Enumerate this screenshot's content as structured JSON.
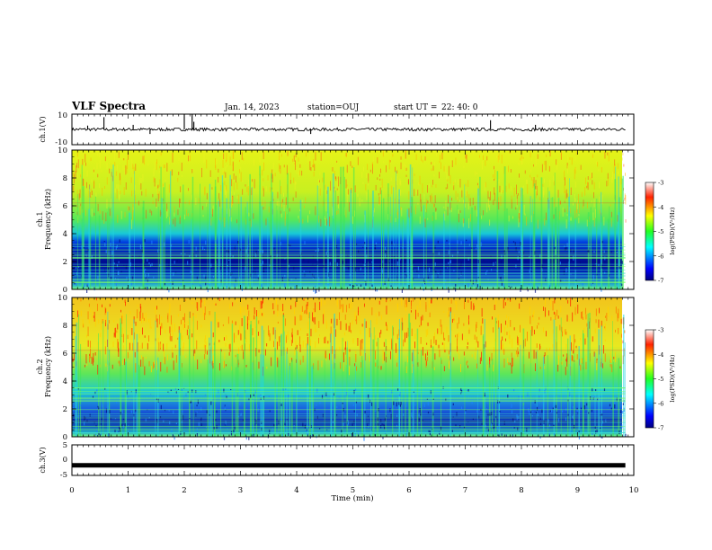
{
  "header": {
    "title": "VLF Spectra",
    "date": "Jan. 14, 2023",
    "station": "station=OUJ",
    "start_ut_label": "start UT =",
    "start_ut_value": "22: 40: 0"
  },
  "chart_data": [
    {
      "type": "line",
      "panel": "ch1-waveform",
      "ylabel": "ch.1(V)",
      "ylim": [
        -10,
        10
      ],
      "ytick_labels": [
        "10",
        "-10"
      ],
      "x_range": [
        0,
        9.85
      ],
      "baseline": 0,
      "noise_amplitude": 1,
      "spikes": [
        {
          "x": 0.28,
          "y": 2.5
        },
        {
          "x": 0.57,
          "y": 8
        },
        {
          "x": 1.09,
          "y": 3
        },
        {
          "x": 1.39,
          "y": -3
        },
        {
          "x": 2.0,
          "y": 10
        },
        {
          "x": 2.14,
          "y": 10
        },
        {
          "x": 2.17,
          "y": 5
        },
        {
          "x": 4.25,
          "y": -3
        },
        {
          "x": 7.45,
          "y": 6
        },
        {
          "x": 8.25,
          "y": 3
        }
      ]
    },
    {
      "type": "heatmap",
      "panel": "ch1-spectrogram",
      "ylabel": "ch.1\nFrequency (kHz)",
      "ylabel_line1": "ch.1",
      "ylabel_line2": "Frequency (kHz)",
      "ylim": [
        0,
        10
      ],
      "ytick_labels": [
        "0",
        "2",
        "4",
        "6",
        "8",
        "10"
      ],
      "x_range": [
        0,
        9.85
      ],
      "low_band_khz": [
        0,
        3.6
      ],
      "colorbar": {
        "label": "log(PSD)(V²/Hz)",
        "range": [
          -7,
          -3
        ],
        "tick_labels": [
          "-3",
          "-4",
          "-5",
          "-6",
          "-7"
        ]
      }
    },
    {
      "type": "heatmap",
      "panel": "ch2-spectrogram",
      "ylabel": "ch.2\nFrequency (kHz)",
      "ylabel_line1": "ch.2",
      "ylabel_line2": "Frequency (kHz)",
      "ylim": [
        0,
        10
      ],
      "ytick_labels": [
        "0",
        "2",
        "4",
        "6",
        "8",
        "10"
      ],
      "x_range": [
        0,
        9.85
      ],
      "low_band_khz": [
        0,
        3.6
      ],
      "colorbar": {
        "label": "log(PSD)(V²/Hz)",
        "range": [
          -7,
          -3
        ],
        "tick_labels": [
          "-3",
          "-4",
          "-5",
          "-6",
          "-7"
        ]
      }
    },
    {
      "type": "line",
      "panel": "ch3-waveform",
      "ylabel": "ch.3(V)",
      "ylim": [
        -5,
        5
      ],
      "ytick_labels": [
        "5",
        "0",
        "-5"
      ],
      "x_range": [
        0,
        9.85
      ],
      "baseline": -1.7
    }
  ],
  "x_axis": {
    "label": "Time (min)",
    "range": [
      0,
      10
    ],
    "tick_labels": [
      "0",
      "1",
      "2",
      "3",
      "4",
      "5",
      "6",
      "7",
      "8",
      "9",
      "10"
    ]
  }
}
